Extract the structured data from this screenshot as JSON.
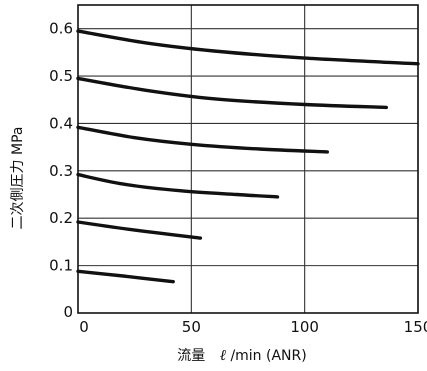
{
  "chart_data": {
    "type": "line",
    "xlabel": {
      "prefix": "流量",
      "unit_symbol": "ℓ",
      "unit_rest": "/min",
      "suffix": "(ANR)"
    },
    "ylabel": "二次側圧力 MPa",
    "xlim": [
      0,
      150
    ],
    "ylim": [
      0,
      0.65
    ],
    "x_ticks": [
      0,
      50,
      100,
      150
    ],
    "x_tick_labels": [
      "0",
      "50",
      "100",
      "150"
    ],
    "y_ticks": [
      0.1,
      0.2,
      0.3,
      0.4,
      0.5,
      0.6
    ],
    "y_tick_labels": [
      "0.1",
      "0.2",
      "0.3",
      "0.4",
      "0.5",
      "0.6"
    ],
    "origin_label": "0",
    "grid": true,
    "line_color": "#111111",
    "series": [
      {
        "x": [
          0,
          20,
          42
        ],
        "y": [
          0.088,
          0.078,
          0.066
        ]
      },
      {
        "x": [
          0,
          25,
          54
        ],
        "y": [
          0.192,
          0.175,
          0.158
        ]
      },
      {
        "x": [
          0,
          20,
          45,
          70,
          88
        ],
        "y": [
          0.292,
          0.272,
          0.258,
          0.25,
          0.245
        ]
      },
      {
        "x": [
          0,
          25,
          50,
          80,
          110
        ],
        "y": [
          0.392,
          0.37,
          0.356,
          0.346,
          0.34
        ]
      },
      {
        "x": [
          0,
          30,
          60,
          100,
          136
        ],
        "y": [
          0.495,
          0.47,
          0.452,
          0.44,
          0.434
        ]
      },
      {
        "x": [
          0,
          30,
          60,
          100,
          150
        ],
        "y": [
          0.595,
          0.57,
          0.553,
          0.538,
          0.526
        ]
      }
    ]
  }
}
